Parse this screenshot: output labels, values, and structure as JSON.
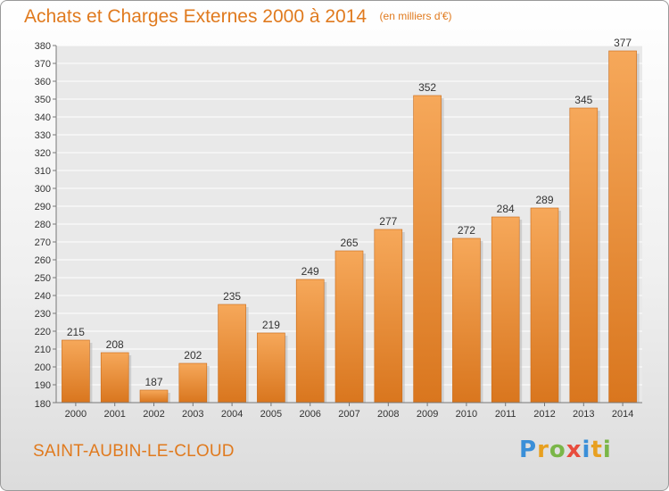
{
  "title": "Achats et Charges Externes 2000 à 2014",
  "unit_label": "(en milliers d'€)",
  "commune": "SAINT-AUBIN-LE-CLOUD",
  "logo": {
    "text": "Proxiti",
    "letter_colors": [
      "#3a8fd8",
      "#e8a020",
      "#7ab648",
      "#e84c3d",
      "#3a8fd8",
      "#e8a020",
      "#7ab648"
    ]
  },
  "colors": {
    "bar_light": "#f6a85a",
    "bar_dark": "#d9761e",
    "accent": "#e07a1e"
  },
  "chart_data": {
    "type": "bar",
    "categories": [
      "2000",
      "2001",
      "2002",
      "2003",
      "2004",
      "2005",
      "2006",
      "2007",
      "2008",
      "2009",
      "2010",
      "2011",
      "2012",
      "2013",
      "2014"
    ],
    "values": [
      215,
      208,
      187,
      202,
      235,
      219,
      249,
      265,
      277,
      352,
      272,
      284,
      289,
      345,
      377
    ],
    "ylim": [
      180,
      380
    ],
    "yticks": [
      180,
      190,
      200,
      210,
      220,
      230,
      240,
      250,
      260,
      270,
      280,
      290,
      300,
      310,
      320,
      330,
      340,
      350,
      360,
      370,
      380
    ],
    "grid": true,
    "xlabel": "",
    "ylabel": ""
  }
}
